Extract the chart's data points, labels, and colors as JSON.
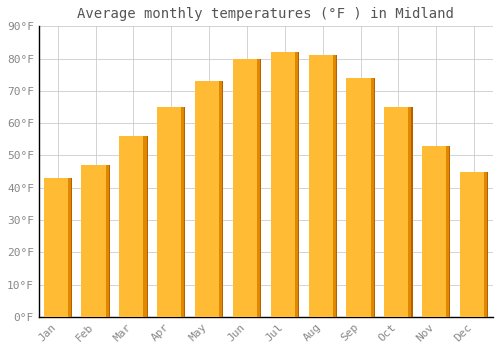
{
  "title": "Average monthly temperatures (°F ) in Midland",
  "months": [
    "Jan",
    "Feb",
    "Mar",
    "Apr",
    "May",
    "Jun",
    "Jul",
    "Aug",
    "Sep",
    "Oct",
    "Nov",
    "Dec"
  ],
  "values": [
    43,
    47,
    56,
    65,
    73,
    80,
    82,
    81,
    74,
    65,
    53,
    45
  ],
  "bar_color_main": "#FFAA00",
  "bar_color_right": "#F08000",
  "bar_edge_color": "#C87000",
  "background_color": "#FFFFFF",
  "grid_color": "#CCCCCC",
  "ylim": [
    0,
    90
  ],
  "yticks": [
    0,
    10,
    20,
    30,
    40,
    50,
    60,
    70,
    80,
    90
  ],
  "ytick_labels": [
    "0°F",
    "10°F",
    "20°F",
    "30°F",
    "40°F",
    "50°F",
    "60°F",
    "70°F",
    "80°F",
    "90°F"
  ],
  "title_fontsize": 10,
  "tick_fontsize": 8,
  "font_color": "#888888",
  "title_color": "#555555",
  "bar_width": 0.75
}
